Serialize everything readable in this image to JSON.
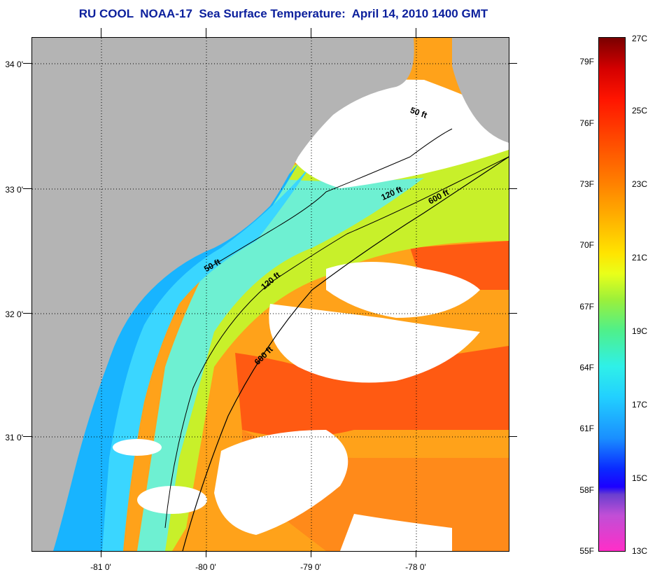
{
  "title": "RU COOL  NOAA-17  Sea Surface Temperature:  April 14, 2010 1400 GMT",
  "map": {
    "lon_labels": [
      "-81 0'",
      "-80 0'",
      "-79 0'",
      "-78 0'"
    ],
    "lat_labels": [
      "34 0'",
      "33 0'",
      "32 0'",
      "31 0'"
    ],
    "contour_labels": [
      "50 ft",
      "50 ft",
      "120 ft",
      "120 ft",
      "600 ft",
      "600 ft"
    ],
    "colors": {
      "land": "#b4b4b4",
      "cloud": "#ffffff",
      "coastal": "#18b4ff",
      "shelf": "#6ef0d2",
      "offshore": "#ff7e1a",
      "gulfstream": "#ff5a12"
    }
  },
  "colorbar": {
    "fahrenheit": [
      "79F",
      "76F",
      "73F",
      "70F",
      "67F",
      "64F",
      "61F",
      "58F",
      "55F"
    ],
    "celsius": [
      "27C",
      "25C",
      "23C",
      "21C",
      "19C",
      "17C",
      "15C",
      "13C"
    ]
  }
}
